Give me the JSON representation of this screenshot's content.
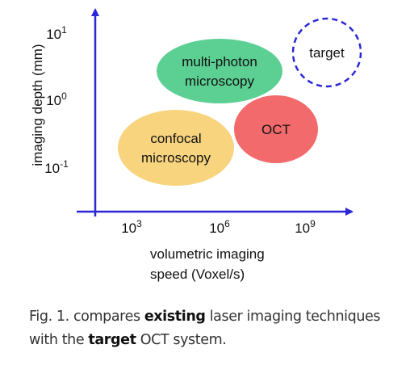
{
  "y_axis": {
    "label": "imaging depth (mm)",
    "ticks": [
      {
        "base": "10",
        "exp": "1"
      },
      {
        "base": "10",
        "exp": "0"
      },
      {
        "base": "10",
        "exp": "-1"
      }
    ]
  },
  "x_axis": {
    "label_lines": [
      "volumetric imaging",
      "speed (Voxel/s)"
    ],
    "ticks": [
      {
        "base": "10",
        "exp": "3"
      },
      {
        "base": "10",
        "exp": "6"
      },
      {
        "base": "10",
        "exp": "9"
      }
    ]
  },
  "nodes": [
    {
      "label_lines": [
        "multi-photon",
        "microscopy"
      ],
      "color": "#5ccf93"
    },
    {
      "label_lines": [
        "OCT"
      ],
      "color": "#f26a6c"
    },
    {
      "label_lines": [
        "confocal",
        "microscopy"
      ],
      "color": "#f8d47e"
    },
    {
      "label_lines": [
        "target"
      ],
      "color": "#2b27d6"
    }
  ],
  "caption": {
    "parts": [
      {
        "text": "Fig. 1.",
        "bold": false
      },
      {
        "text": " compares ",
        "bold": false
      },
      {
        "text": "existing",
        "bold": true
      },
      {
        "text": " laser imaging techniques with the ",
        "bold": false
      },
      {
        "text": "target",
        "bold": true
      },
      {
        "text": " OCT system.",
        "bold": false
      }
    ]
  }
}
